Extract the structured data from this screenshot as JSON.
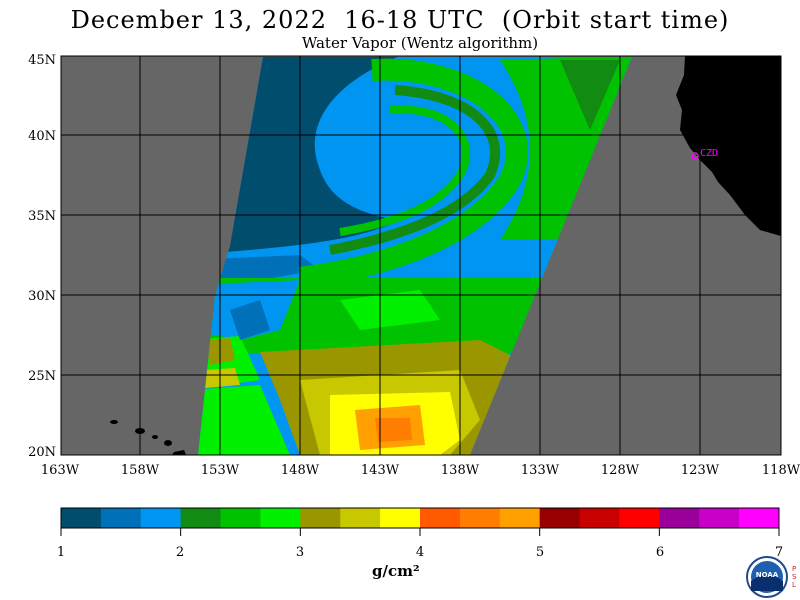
{
  "title": "December 13, 2022  16-18 UTC  (Orbit start time)",
  "subtitle": "Water Vapor (Wentz algorithm)",
  "station_label": "CZD",
  "map": {
    "lat_labels": [
      "45N",
      "40N",
      "35N",
      "30N",
      "25N",
      "20N"
    ],
    "lon_labels": [
      "163W",
      "158W",
      "153W",
      "148W",
      "143W",
      "138W",
      "133W",
      "128W",
      "123W",
      "118W"
    ],
    "no_data_color": "#666666",
    "land_color": "#000000",
    "station_color": "#ff00ff"
  },
  "colorbar": {
    "units": "g/cm²",
    "tick_labels": [
      "1",
      "2",
      "3",
      "4",
      "5",
      "6",
      "7"
    ],
    "colors": [
      "#004d6e",
      "#0070b8",
      "#0095f0",
      "#118b11",
      "#00c200",
      "#00f000",
      "#9a9600",
      "#c8c800",
      "#ffff00",
      "#ff5a00",
      "#ff7d00",
      "#ffa000",
      "#960000",
      "#c80000",
      "#ff0000",
      "#9a009a",
      "#c800c8",
      "#ff00ff"
    ]
  },
  "logo": {
    "name": "noaa-logo",
    "text": "NOAA",
    "side_text": "PSL"
  }
}
